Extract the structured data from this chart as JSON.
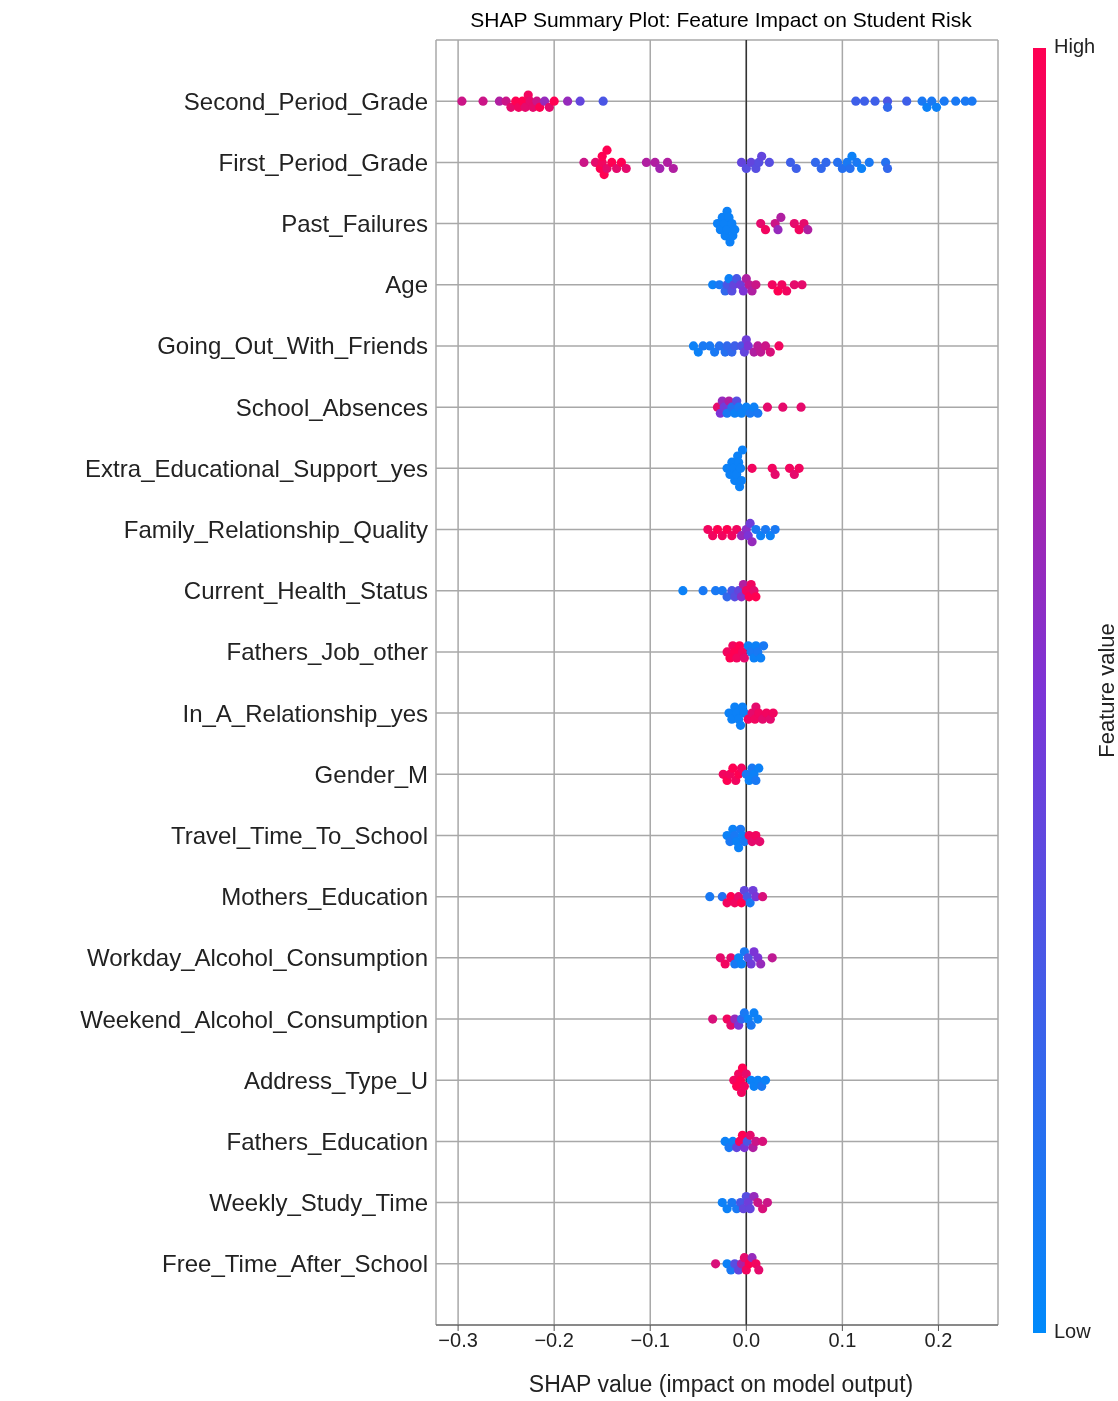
{
  "chart_data": {
    "type": "scatter",
    "title": "SHAP Summary Plot: Feature Impact on Student Risk",
    "xlabel": "SHAP value (impact on model output)",
    "clabel": "Feature value",
    "orientation": "horizontal",
    "categories": [
      "Second_Period_Grade",
      "First_Period_Grade",
      "Past_Failures",
      "Age",
      "Going_Out_With_Friends",
      "School_Absences",
      "Extra_Educational_Support_yes",
      "Family_Relationship_Quality",
      "Current_Health_Status",
      "Fathers_Job_other",
      "In_A_Relationship_yes",
      "Gender_M",
      "Travel_Time_To_School",
      "Mothers_Education",
      "Workday_Alcohol_Consumption",
      "Weekend_Alcohol_Consumption",
      "Address_Type_U",
      "Fathers_Education",
      "Weekly_Study_Time",
      "Free_Time_After_School"
    ],
    "xlim": [
      -0.323,
      0.262
    ],
    "xticks": [
      {
        "value": -0.3,
        "label": "−0.3"
      },
      {
        "value": -0.2,
        "label": "−0.2"
      },
      {
        "value": -0.1,
        "label": "−0.1"
      },
      {
        "value": 0,
        "label": "0.0"
      },
      0.1,
      0.2
    ],
    "annotations": [
      "High",
      "Low"
    ],
    "grid": true,
    "marker": "circle",
    "ref_lines": [
      {
        "axis": "x",
        "value": 0,
        "color": "#333333"
      }
    ],
    "series": [
      {
        "x": [
          "Second_Period_Grade",
          "Second_Period_Grade",
          "Second_Period_Grade",
          "Second_Period_Grade",
          "Second_Period_Grade",
          "Second_Period_Grade",
          "Second_Period_Grade",
          "Second_Period_Grade",
          "Second_Period_Grade",
          "Second_Period_Grade",
          "Second_Period_Grade",
          "Second_Period_Grade",
          "Second_Period_Grade",
          "Second_Period_Grade",
          "Second_Period_Grade",
          "Second_Period_Grade",
          "Second_Period_Grade",
          "Second_Period_Grade",
          "Second_Period_Grade",
          "Second_Period_Grade",
          "Second_Period_Grade",
          "Second_Period_Grade",
          "Second_Period_Grade",
          "Second_Period_Grade",
          "Second_Period_Grade",
          "Second_Period_Grade",
          "Second_Period_Grade",
          "Second_Period_Grade",
          "Second_Period_Grade",
          "Second_Period_Grade",
          "Second_Period_Grade",
          "Second_Period_Grade",
          "Second_Period_Grade",
          "Second_Period_Grade",
          "First_Period_Grade",
          "First_Period_Grade",
          "First_Period_Grade",
          "First_Period_Grade",
          "First_Period_Grade",
          "First_Period_Grade",
          "First_Period_Grade",
          "First_Period_Grade",
          "First_Period_Grade",
          "First_Period_Grade",
          "First_Period_Grade",
          "First_Period_Grade",
          "First_Period_Grade",
          "First_Period_Grade",
          "First_Period_Grade",
          "First_Period_Grade",
          "First_Period_Grade",
          "First_Period_Grade",
          "First_Period_Grade",
          "First_Period_Grade",
          "First_Period_Grade",
          "First_Period_Grade",
          "First_Period_Grade",
          "First_Period_Grade",
          "First_Period_Grade",
          "First_Period_Grade",
          "First_Period_Grade",
          "First_Period_Grade",
          "First_Period_Grade",
          "First_Period_Grade",
          "First_Period_Grade",
          "First_Period_Grade",
          "First_Period_Grade",
          "First_Period_Grade",
          "First_Period_Grade",
          "First_Period_Grade",
          "First_Period_Grade",
          "First_Period_Grade",
          "First_Period_Grade",
          "Past_Failures",
          "Past_Failures",
          "Past_Failures",
          "Past_Failures",
          "Past_Failures",
          "Past_Failures",
          "Past_Failures",
          "Past_Failures",
          "Past_Failures",
          "Past_Failures",
          "Past_Failures",
          "Past_Failures",
          "Past_Failures",
          "Past_Failures",
          "Past_Failures",
          "Past_Failures",
          "Past_Failures",
          "Past_Failures",
          "Past_Failures",
          "Past_Failures",
          "Past_Failures",
          "Age",
          "Age",
          "Age",
          "Age",
          "Age",
          "Age",
          "Age",
          "Age",
          "Age",
          "Age",
          "Age",
          "Age",
          "Age",
          "Age",
          "Age",
          "Age",
          "Age",
          "Age",
          "Age",
          "Age",
          "Going_Out_With_Friends",
          "Going_Out_With_Friends",
          "Going_Out_With_Friends",
          "Going_Out_With_Friends",
          "Going_Out_With_Friends",
          "Going_Out_With_Friends",
          "Going_Out_With_Friends",
          "Going_Out_With_Friends",
          "Going_Out_With_Friends",
          "Going_Out_With_Friends",
          "Going_Out_With_Friends",
          "Going_Out_With_Friends",
          "Going_Out_With_Friends",
          "Going_Out_With_Friends",
          "Going_Out_With_Friends",
          "Going_Out_With_Friends",
          "Going_Out_With_Friends",
          "Going_Out_With_Friends",
          "Going_Out_With_Friends",
          "Going_Out_With_Friends",
          "School_Absences",
          "School_Absences",
          "School_Absences",
          "School_Absences",
          "School_Absences",
          "School_Absences",
          "School_Absences",
          "School_Absences",
          "School_Absences",
          "School_Absences",
          "School_Absences",
          "School_Absences",
          "School_Absences",
          "School_Absences",
          "School_Absences",
          "School_Absences",
          "School_Absences",
          "School_Absences",
          "Extra_Educational_Support_yes",
          "Extra_Educational_Support_yes",
          "Extra_Educational_Support_yes",
          "Extra_Educational_Support_yes",
          "Extra_Educational_Support_yes",
          "Extra_Educational_Support_yes",
          "Extra_Educational_Support_yes",
          "Extra_Educational_Support_yes",
          "Extra_Educational_Support_yes",
          "Extra_Educational_Support_yes",
          "Extra_Educational_Support_yes",
          "Extra_Educational_Support_yes",
          "Extra_Educational_Support_yes",
          "Extra_Educational_Support_yes",
          "Extra_Educational_Support_yes",
          "Extra_Educational_Support_yes",
          "Extra_Educational_Support_yes",
          "Extra_Educational_Support_yes",
          "Family_Relationship_Quality",
          "Family_Relationship_Quality",
          "Family_Relationship_Quality",
          "Family_Relationship_Quality",
          "Family_Relationship_Quality",
          "Family_Relationship_Quality",
          "Family_Relationship_Quality",
          "Family_Relationship_Quality",
          "Family_Relationship_Quality",
          "Family_Relationship_Quality",
          "Family_Relationship_Quality",
          "Family_Relationship_Quality",
          "Family_Relationship_Quality",
          "Family_Relationship_Quality",
          "Family_Relationship_Quality",
          "Family_Relationship_Quality",
          "Family_Relationship_Quality",
          "Current_Health_Status",
          "Current_Health_Status",
          "Current_Health_Status",
          "Current_Health_Status",
          "Current_Health_Status",
          "Current_Health_Status",
          "Current_Health_Status",
          "Current_Health_Status",
          "Current_Health_Status",
          "Current_Health_Status",
          "Current_Health_Status",
          "Current_Health_Status",
          "Current_Health_Status",
          "Current_Health_Status",
          "Current_Health_Status",
          "Fathers_Job_other",
          "Fathers_Job_other",
          "Fathers_Job_other",
          "Fathers_Job_other",
          "Fathers_Job_other",
          "Fathers_Job_other",
          "Fathers_Job_other",
          "Fathers_Job_other",
          "Fathers_Job_other",
          "Fathers_Job_other",
          "Fathers_Job_other",
          "Fathers_Job_other",
          "Fathers_Job_other",
          "Fathers_Job_other",
          "Fathers_Job_other",
          "In_A_Relationship_yes",
          "In_A_Relationship_yes",
          "In_A_Relationship_yes",
          "In_A_Relationship_yes",
          "In_A_Relationship_yes",
          "In_A_Relationship_yes",
          "In_A_Relationship_yes",
          "In_A_Relationship_yes",
          "In_A_Relationship_yes",
          "In_A_Relationship_yes",
          "In_A_Relationship_yes",
          "In_A_Relationship_yes",
          "In_A_Relationship_yes",
          "In_A_Relationship_yes",
          "In_A_Relationship_yes",
          "In_A_Relationship_yes",
          "In_A_Relationship_yes",
          "Gender_M",
          "Gender_M",
          "Gender_M",
          "Gender_M",
          "Gender_M",
          "Gender_M",
          "Gender_M",
          "Gender_M",
          "Gender_M",
          "Gender_M",
          "Gender_M",
          "Gender_M",
          "Gender_M",
          "Travel_Time_To_School",
          "Travel_Time_To_School",
          "Travel_Time_To_School",
          "Travel_Time_To_School",
          "Travel_Time_To_School",
          "Travel_Time_To_School",
          "Travel_Time_To_School",
          "Travel_Time_To_School",
          "Travel_Time_To_School",
          "Travel_Time_To_School",
          "Travel_Time_To_School",
          "Travel_Time_To_School",
          "Travel_Time_To_School",
          "Mothers_Education",
          "Mothers_Education",
          "Mothers_Education",
          "Mothers_Education",
          "Mothers_Education",
          "Mothers_Education",
          "Mothers_Education",
          "Mothers_Education",
          "Mothers_Education",
          "Mothers_Education",
          "Mothers_Education",
          "Mothers_Education",
          "Mothers_Education",
          "Workday_Alcohol_Consumption",
          "Workday_Alcohol_Consumption",
          "Workday_Alcohol_Consumption",
          "Workday_Alcohol_Consumption",
          "Workday_Alcohol_Consumption",
          "Workday_Alcohol_Consumption",
          "Workday_Alcohol_Consumption",
          "Workday_Alcohol_Consumption",
          "Workday_Alcohol_Consumption",
          "Workday_Alcohol_Consumption",
          "Workday_Alcohol_Consumption",
          "Workday_Alcohol_Consumption",
          "Workday_Alcohol_Consumption",
          "Weekend_Alcohol_Consumption",
          "Weekend_Alcohol_Consumption",
          "Weekend_Alcohol_Consumption",
          "Weekend_Alcohol_Consumption",
          "Weekend_Alcohol_Consumption",
          "Weekend_Alcohol_Consumption",
          "Weekend_Alcohol_Consumption",
          "Weekend_Alcohol_Consumption",
          "Weekend_Alcohol_Consumption",
          "Weekend_Alcohol_Consumption",
          "Weekend_Alcohol_Consumption",
          "Address_Type_U",
          "Address_Type_U",
          "Address_Type_U",
          "Address_Type_U",
          "Address_Type_U",
          "Address_Type_U",
          "Address_Type_U",
          "Address_Type_U",
          "Address_Type_U",
          "Address_Type_U",
          "Address_Type_U",
          "Address_Type_U",
          "Address_Type_U",
          "Fathers_Education",
          "Fathers_Education",
          "Fathers_Education",
          "Fathers_Education",
          "Fathers_Education",
          "Fathers_Education",
          "Fathers_Education",
          "Fathers_Education",
          "Fathers_Education",
          "Fathers_Education",
          "Fathers_Education",
          "Fathers_Education",
          "Weekly_Study_Time",
          "Weekly_Study_Time",
          "Weekly_Study_Time",
          "Weekly_Study_Time",
          "Weekly_Study_Time",
          "Weekly_Study_Time",
          "Weekly_Study_Time",
          "Weekly_Study_Time",
          "Weekly_Study_Time",
          "Weekly_Study_Time",
          "Weekly_Study_Time",
          "Weekly_Study_Time",
          "Weekly_Study_Time",
          "Free_Time_After_School",
          "Free_Time_After_School",
          "Free_Time_After_School",
          "Free_Time_After_School",
          "Free_Time_After_School",
          "Free_Time_After_School",
          "Free_Time_After_School",
          "Free_Time_After_School",
          "Free_Time_After_School",
          "Free_Time_After_School",
          "Free_Time_After_School",
          "Free_Time_After_School"
        ],
        "values": [
          -0.296,
          -0.274,
          -0.257,
          -0.25,
          -0.245,
          -0.24,
          -0.237,
          -0.233,
          -0.23,
          -0.227,
          -0.225,
          -0.222,
          -0.218,
          -0.215,
          -0.21,
          -0.205,
          -0.2,
          -0.186,
          -0.173,
          -0.149,
          0.114,
          0.123,
          0.134,
          0.147,
          0.147,
          0.167,
          0.183,
          0.188,
          0.193,
          0.198,
          0.206,
          0.218,
          0.228,
          0.235,
          -0.169,
          -0.157,
          -0.152,
          -0.15,
          -0.148,
          -0.145,
          -0.14,
          -0.135,
          -0.13,
          -0.125,
          -0.15,
          -0.145,
          -0.104,
          -0.095,
          -0.09,
          -0.082,
          -0.076,
          -0.005,
          0,
          0.005,
          0.01,
          0.013,
          0.016,
          0.024,
          0.046,
          0.052,
          0.072,
          0.078,
          0.083,
          0.095,
          0.1,
          0.105,
          0.108,
          0.11,
          0.115,
          0.12,
          0.128,
          0.145,
          0.147,
          -0.03,
          -0.027,
          -0.025,
          -0.023,
          -0.022,
          -0.02,
          -0.02,
          -0.018,
          -0.017,
          -0.015,
          -0.014,
          -0.012,
          0.015,
          0.02,
          0.03,
          0.033,
          0.036,
          0.05,
          0.055,
          0.06,
          0.064,
          -0.035,
          -0.028,
          -0.022,
          -0.02,
          -0.018,
          -0.015,
          -0.013,
          -0.01,
          -0.006,
          -0.003,
          0,
          0.003,
          0.006,
          0.01,
          0.027,
          0.033,
          0.037,
          0.042,
          0.05,
          0.058,
          -0.055,
          -0.05,
          -0.045,
          -0.038,
          -0.033,
          -0.028,
          -0.022,
          -0.02,
          -0.015,
          -0.012,
          -0.005,
          -0.002,
          0,
          0.002,
          0.008,
          0.012,
          0.015,
          0.02,
          0.025,
          0.034,
          -0.03,
          -0.027,
          -0.025,
          -0.023,
          -0.02,
          -0.018,
          -0.015,
          -0.012,
          -0.01,
          -0.008,
          -0.005,
          0,
          0.004,
          0.008,
          0.012,
          0.022,
          0.038,
          0.057,
          -0.02,
          -0.017,
          -0.015,
          -0.013,
          -0.012,
          -0.01,
          -0.009,
          -0.008,
          -0.007,
          -0.006,
          -0.005,
          -0.004,
          0.006,
          0.027,
          0.03,
          0.045,
          0.05,
          0.055,
          -0.04,
          -0.035,
          -0.03,
          -0.025,
          -0.02,
          -0.015,
          -0.01,
          -0.005,
          0,
          0.002,
          0.004,
          0.006,
          0.01,
          0.015,
          0.02,
          0.025,
          0.03,
          -0.066,
          -0.045,
          -0.032,
          -0.025,
          -0.02,
          -0.015,
          -0.012,
          -0.008,
          -0.005,
          -0.003,
          0,
          0.003,
          0.005,
          0.008,
          0.01,
          -0.02,
          -0.017,
          -0.014,
          -0.012,
          -0.01,
          -0.007,
          -0.004,
          -0.002,
          0.002,
          0.005,
          0.008,
          0.01,
          0.012,
          0.015,
          0.018,
          -0.018,
          -0.015,
          -0.012,
          -0.01,
          -0.008,
          -0.006,
          -0.004,
          -0.002,
          0.002,
          0.006,
          0.009,
          0.01,
          0.013,
          0.017,
          0.021,
          0.025,
          0.028,
          -0.024,
          -0.02,
          -0.017,
          -0.014,
          -0.011,
          -0.008,
          -0.005,
          0,
          0.003,
          0.006,
          0.008,
          0.01,
          0.013,
          -0.02,
          -0.017,
          -0.014,
          -0.012,
          -0.01,
          -0.008,
          -0.006,
          -0.004,
          -0.002,
          0.003,
          0.006,
          0.01,
          0.014,
          -0.038,
          -0.025,
          -0.02,
          -0.016,
          -0.012,
          -0.008,
          -0.005,
          -0.002,
          0.001,
          0.004,
          0.007,
          0.01,
          0.017,
          -0.027,
          -0.022,
          -0.016,
          -0.012,
          -0.008,
          -0.005,
          -0.002,
          0.002,
          0.005,
          0.008,
          0.012,
          0.015,
          0.027,
          -0.035,
          -0.02,
          -0.016,
          -0.012,
          -0.008,
          -0.005,
          -0.002,
          0.002,
          0.005,
          0.008,
          0.012,
          -0.013,
          -0.01,
          -0.008,
          -0.006,
          -0.005,
          -0.004,
          -0.002,
          0,
          0.005,
          0.008,
          0.012,
          0.016,
          0.02,
          -0.022,
          -0.018,
          -0.014,
          -0.01,
          -0.007,
          -0.004,
          -0.002,
          0.001,
          0.004,
          0.007,
          0.01,
          0.017,
          -0.025,
          -0.02,
          -0.015,
          -0.01,
          -0.006,
          -0.003,
          0,
          0.002,
          0.004,
          0.008,
          0.012,
          0.017,
          0.022,
          -0.032,
          -0.02,
          -0.016,
          -0.012,
          -0.008,
          -0.005,
          -0.002,
          0,
          0.003,
          0.006,
          0.01,
          0.013
        ],
        "colors": [
          "#cb1587",
          "#cb1587",
          "#b01fa1",
          "#cb1587",
          "#e50a6c",
          "#ff0052",
          "#f2055f",
          "#ff0052",
          "#e50a6c",
          "#f2055f",
          "#e50a6c",
          "#e50a6c",
          "#cb1587",
          "#ff0052",
          "#962abc",
          "#e50a6c",
          "#ff0052",
          "#962abc",
          "#6345dd",
          "#4a56e5",
          "#3e5fe9",
          "#3e5fe9",
          "#3e5fe9",
          "#4a56e5",
          "#3268ec",
          "#3e5fe9",
          "#1979f4",
          "#0c81f7",
          "#1979f4",
          "#0c81f7",
          "#1979f4",
          "#1979f4",
          "#1979f4",
          "#1979f4",
          "#cb1587",
          "#e50a6c",
          "#ff0052",
          "#f2055f",
          "#ff0052",
          "#e50a6c",
          "#ff0052",
          "#e50a6c",
          "#ff0052",
          "#e50a6c",
          "#ff0052",
          "#ff0052",
          "#b01fa1",
          "#b01fa1",
          "#a324ae",
          "#b01fa1",
          "#b01fa1",
          "#6345dd",
          "#574ee1",
          "#6345dd",
          "#574ee1",
          "#574ee1",
          "#6345dd",
          "#574ee1",
          "#3e5fe9",
          "#3e5fe9",
          "#3268ec",
          "#3268ec",
          "#3268ec",
          "#2570f0",
          "#2570f0",
          "#1979f4",
          "#2570f0",
          "#0c81f7",
          "#1979f4",
          "#0c81f7",
          "#1979f4",
          "#2570f0",
          "#3268ec",
          "#0c81f7",
          "#0c81f7",
          "#0c81f7",
          "#0c81f7",
          "#0c81f7",
          "#0c81f7",
          "#0c81f7",
          "#0c81f7",
          "#0c81f7",
          "#0c81f7",
          "#0c81f7",
          "#0c81f7",
          "#e50a6c",
          "#f2055f",
          "#cb1587",
          "#962abc",
          "#b01fa1",
          "#e50a6c",
          "#f2055f",
          "#e50a6c",
          "#b01fa1",
          "#0c81f7",
          "#1979f4",
          "#3268ec",
          "#4a56e5",
          "#0c81f7",
          "#574ee1",
          "#6345dd",
          "#4a56e5",
          "#703dda",
          "#7c34d6",
          "#b01fa1",
          "#be1a94",
          "#b01fa1",
          "#cb1587",
          "#f2055f",
          "#ff0052",
          "#f2055f",
          "#f2055f",
          "#e50a6c",
          "#e50a6c",
          "#0c81f7",
          "#0c81f7",
          "#1979f4",
          "#1979f4",
          "#1979f4",
          "#2570f0",
          "#2570f0",
          "#3268ec",
          "#3268ec",
          "#3e5fe9",
          "#4a56e5",
          "#6345dd",
          "#703dda",
          "#7c34d6",
          "#b01fa1",
          "#be1a94",
          "#be1a94",
          "#cb1587",
          "#d8107a",
          "#f2055f",
          "#e50a6c",
          "#7c34d6",
          "#962abc",
          "#703dda",
          "#1979f4",
          "#b01fa1",
          "#2570f0",
          "#0c81f7",
          "#574ee1",
          "#1979f4",
          "#0c81f7",
          "#0c81f7",
          "#1979f4",
          "#0c81f7",
          "#1979f4",
          "#e50a6c",
          "#e50a6c",
          "#e50a6c",
          "#0c81f7",
          "#0c81f7",
          "#0c81f7",
          "#0c81f7",
          "#0c81f7",
          "#0c81f7",
          "#0c81f7",
          "#0c81f7",
          "#0c81f7",
          "#0c81f7",
          "#0c81f7",
          "#0c81f7",
          "#f2055f",
          "#f2055f",
          "#e50a6c",
          "#f2055f",
          "#e50a6c",
          "#f2055f",
          "#f2055f",
          "#f2055f",
          "#ff0052",
          "#f2055f",
          "#ff0052",
          "#f2055f",
          "#f2055f",
          "#962abc",
          "#892fc9",
          "#7c34d6",
          "#703dda",
          "#962abc",
          "#1979f4",
          "#0c81f7",
          "#1979f4",
          "#0c81f7",
          "#1979f4",
          "#0c81f7",
          "#1979f4",
          "#1979f4",
          "#1979f4",
          "#3268ec",
          "#4a56e5",
          "#574ee1",
          "#6345dd",
          "#892fc9",
          "#b01fa1",
          "#f2055f",
          "#ff0052",
          "#f2055f",
          "#e50a6c",
          "#ff0052",
          "#f2055f",
          "#ff0052",
          "#f2055f",
          "#ff0052",
          "#f2055f",
          "#ff0052",
          "#f2055f",
          "#e50a6c",
          "#0c81f7",
          "#1979f4",
          "#0c81f7",
          "#0c81f7",
          "#1979f4",
          "#0c81f7",
          "#1979f4",
          "#0c81f7",
          "#0c81f7",
          "#0c81f7",
          "#0c81f7",
          "#0c81f7",
          "#0c81f7",
          "#0c81f7",
          "#0c81f7",
          "#f2055f",
          "#e50a6c",
          "#f2055f",
          "#e50a6c",
          "#f2055f",
          "#e50a6c",
          "#f2055f",
          "#e50a6c",
          "#f2055f",
          "#f2055f",
          "#ff0052",
          "#f2055f",
          "#ff0052",
          "#f2055f",
          "#ff0052",
          "#f2055f",
          "#1979f4",
          "#0c81f7",
          "#1979f4",
          "#0c81f7",
          "#1979f4",
          "#0c81f7",
          "#0c81f7",
          "#1979f4",
          "#0c81f7",
          "#1979f4",
          "#0c81f7",
          "#0c81f7",
          "#1979f4",
          "#0c81f7",
          "#1979f4",
          "#f2055f",
          "#e50a6c",
          "#f2055f",
          "#e50a6c",
          "#1979f4",
          "#2570f0",
          "#f2055f",
          "#ff0052",
          "#f2055f",
          "#e50a6c",
          "#ff0052",
          "#6345dd",
          "#4a56e5",
          "#1979f4",
          "#703dda",
          "#7c34d6",
          "#d8107a",
          "#e50a6c",
          "#f2055f",
          "#e50a6c",
          "#1979f4",
          "#0c81f7",
          "#0c81f7",
          "#1979f4",
          "#574ee1",
          "#703dda",
          "#7c34d6",
          "#7c34d6",
          "#962abc",
          "#be1a94",
          "#d8107a",
          "#f2055f",
          "#e50a6c",
          "#962abc",
          "#7c34d6",
          "#3268ec",
          "#1979f4",
          "#0c81f7",
          "#1979f4",
          "#0c81f7",
          "#0c81f7",
          "#f2055f",
          "#ff0052",
          "#f2055f",
          "#ff0052",
          "#f2055f",
          "#ff0052",
          "#f2055f",
          "#e50a6c",
          "#0c81f7",
          "#0c81f7",
          "#0c81f7",
          "#1979f4",
          "#0c81f7",
          "#0c81f7",
          "#1979f4",
          "#0c81f7",
          "#6345dd",
          "#f2055f",
          "#ff0052",
          "#7c34d6",
          "#4a56e5",
          "#e50a6c",
          "#b01fa1",
          "#cb1587",
          "#d8107a",
          "#0c81f7",
          "#0c81f7",
          "#1979f4",
          "#1979f4",
          "#4a56e5",
          "#6345dd",
          "#574ee1",
          "#703dda",
          "#6345dd",
          "#962abc",
          "#cb1587",
          "#d8107a",
          "#cb1587",
          "#d8107a",
          "#0c81f7",
          "#1979f4",
          "#574ee1",
          "#6345dd",
          "#b01fa1",
          "#e50a6c",
          "#f2055f",
          "#ff0052",
          "#962abc",
          "#f2055f",
          "#e50a6c"
        ]
      }
    ]
  }
}
